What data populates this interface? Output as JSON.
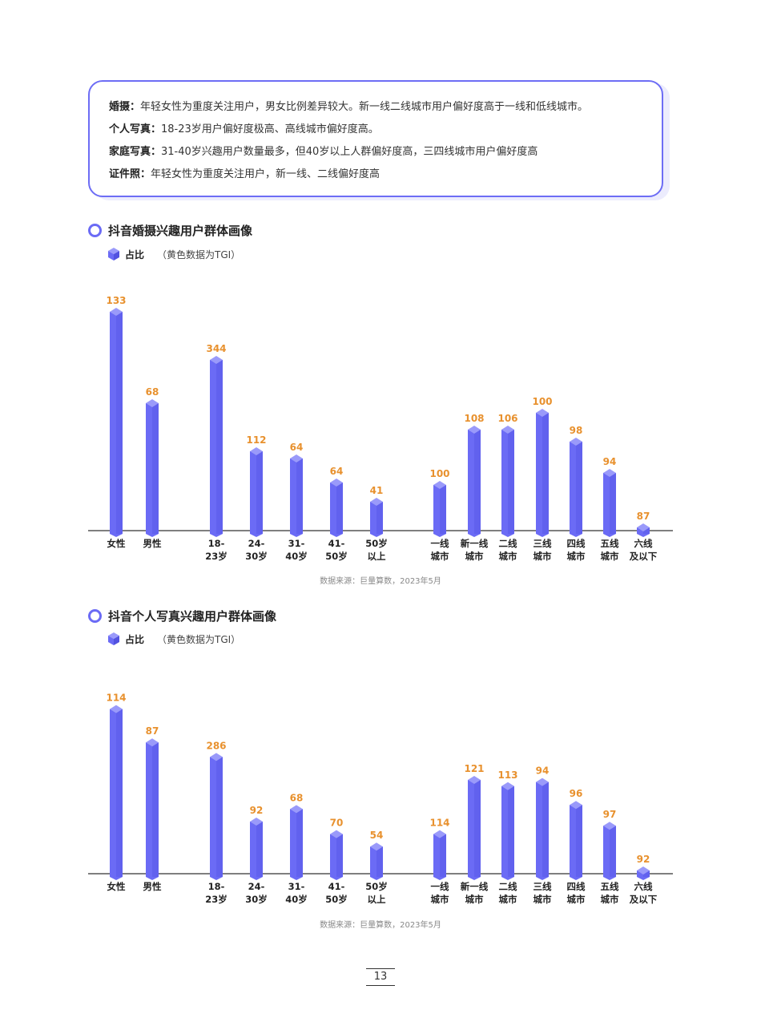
{
  "summary": [
    {
      "label": "婚摄：",
      "text": "年轻女性为重度关注用户，男女比例差异较大。新一线二线城市用户偏好度高于一线和低线城市。"
    },
    {
      "label": "个人写真：",
      "text": "18-23岁用户偏好度极高、高线城市偏好度高。"
    },
    {
      "label": "家庭写真：",
      "text": "31-40岁兴趣用户数量最多，但40岁以上人群偏好度高，三四线城市用户偏好度高"
    },
    {
      "label": "证件照：",
      "text": "年轻女性为重度关注用户，新一线、二线偏好度高"
    }
  ],
  "colors": {
    "bar": "#6b6bf5",
    "bar_top": "#9a9afa",
    "value": "#e8912e",
    "accent": "#6d6df5"
  },
  "chart_data": [
    {
      "type": "bar",
      "title": "抖音婚摄兴趣用户群体画像",
      "legend_label": "占比",
      "legend_note": "（黄色数据为TGI）",
      "source": "数据来源：巨量算数，2023年5月",
      "categories": [
        "女性",
        "男性",
        "18-\n23岁",
        "24-\n30岁",
        "31-\n40岁",
        "41-\n50岁",
        "50岁\n以上",
        "一线\n城市",
        "新一线\n城市",
        "二线\n城市",
        "三线\n城市",
        "四线\n城市",
        "五线\n城市",
        "六线\n及以下"
      ],
      "values": [
        133,
        68,
        344,
        112,
        64,
        64,
        41,
        100,
        108,
        106,
        100,
        98,
        94,
        87
      ],
      "bar_share": [
        0.91,
        0.53,
        0.71,
        0.33,
        0.3,
        0.2,
        0.12,
        0.19,
        0.42,
        0.42,
        0.49,
        0.37,
        0.24,
        0.01
      ]
    },
    {
      "type": "bar",
      "title": "抖音个人写真兴趣用户群体画像",
      "legend_label": "占比",
      "legend_note": "（黄色数据为TGI）",
      "source": "数据来源：巨量算数，2023年5月",
      "categories": [
        "女性",
        "男性",
        "18-\n23岁",
        "24-\n30岁",
        "31-\n40岁",
        "41-\n50岁",
        "50岁\n以上",
        "一线\n城市",
        "新一线\n城市",
        "二线\n城市",
        "三线\n城市",
        "四线\n城市",
        "五线\n城市",
        "六线\n及以下"
      ],
      "values": [
        114,
        87,
        286,
        92,
        68,
        70,
        54,
        114,
        121,
        113,
        94,
        96,
        97,
        92
      ],
      "bar_share": [
        0.79,
        0.63,
        0.56,
        0.25,
        0.31,
        0.19,
        0.13,
        0.19,
        0.45,
        0.42,
        0.44,
        0.33,
        0.23,
        0.01
      ]
    }
  ],
  "page_number": "13"
}
